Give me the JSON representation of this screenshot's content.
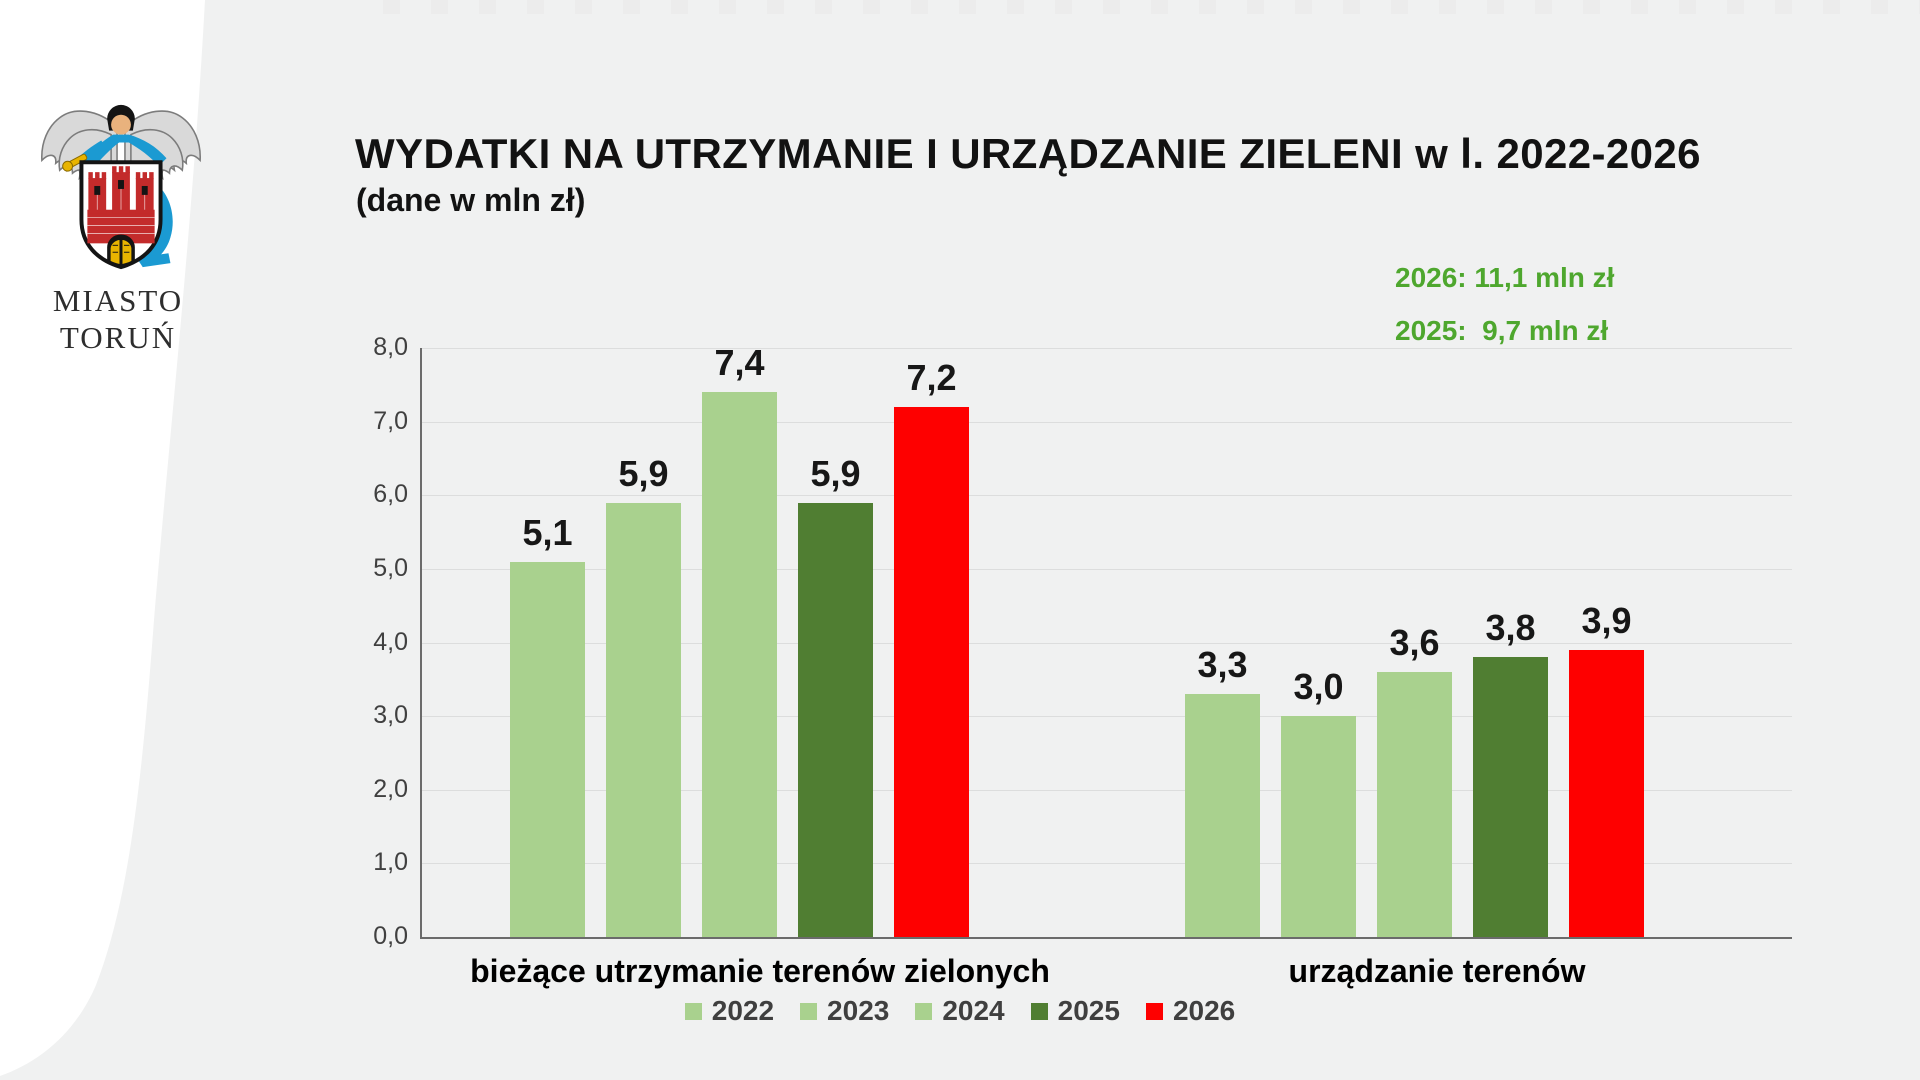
{
  "logo": {
    "icon": "torun-coat-of-arms",
    "org_line1": "MIASTO",
    "org_line2": "TORUŃ"
  },
  "header": {
    "title": "WYDATKI NA UTRZYMANIE I URZĄDZANIE ZIELENI w l. 2022-2026",
    "subtitle": "(dane w mln zł)"
  },
  "theme": {
    "background": "#F0F1F1",
    "panel_white": "#FFFFFF",
    "annotation_green": "#4EA72E",
    "light_green": "#A9D18E",
    "dark_green": "#507E32",
    "red": "#FE0000",
    "gridline": "#DCDDDD",
    "axis": "#6B6B6B"
  },
  "chart_data": {
    "type": "bar",
    "title": "WYDATKI NA UTRZYMANIE I URZĄDZANIE ZIELENI w l. 2022-2026",
    "subtitle": "(dane w mln zł)",
    "unit": "mln zł",
    "categories": [
      "bieżące utrzymanie terenów zielonych",
      "urządzanie terenów"
    ],
    "series": [
      {
        "name": "2022",
        "color": "#A9D18E",
        "values": [
          5.1,
          3.3
        ],
        "labels": [
          "5,1",
          "3,3"
        ]
      },
      {
        "name": "2023",
        "color": "#A9D18E",
        "values": [
          5.9,
          3.0
        ],
        "labels": [
          "5,9",
          "3,0"
        ]
      },
      {
        "name": "2024",
        "color": "#A9D18E",
        "values": [
          7.4,
          3.6
        ],
        "labels": [
          "7,4",
          "3,6"
        ]
      },
      {
        "name": "2025",
        "color": "#507E32",
        "values": [
          5.9,
          3.8
        ],
        "labels": [
          "5,9",
          "3,8"
        ]
      },
      {
        "name": "2026",
        "color": "#FE0000",
        "values": [
          7.2,
          3.9
        ],
        "labels": [
          "7,2",
          "3,9"
        ]
      }
    ],
    "ylim": [
      0,
      8
    ],
    "ytick_labels": [
      "0,0",
      "1,0",
      "2,0",
      "3,0",
      "4,0",
      "5,0",
      "6,0",
      "7,0",
      "8,0"
    ],
    "grid": true,
    "legend_position": "bottom",
    "annotations": [
      "2026: 11,1 mln zł",
      "2025:  9,7 mln zł"
    ]
  }
}
